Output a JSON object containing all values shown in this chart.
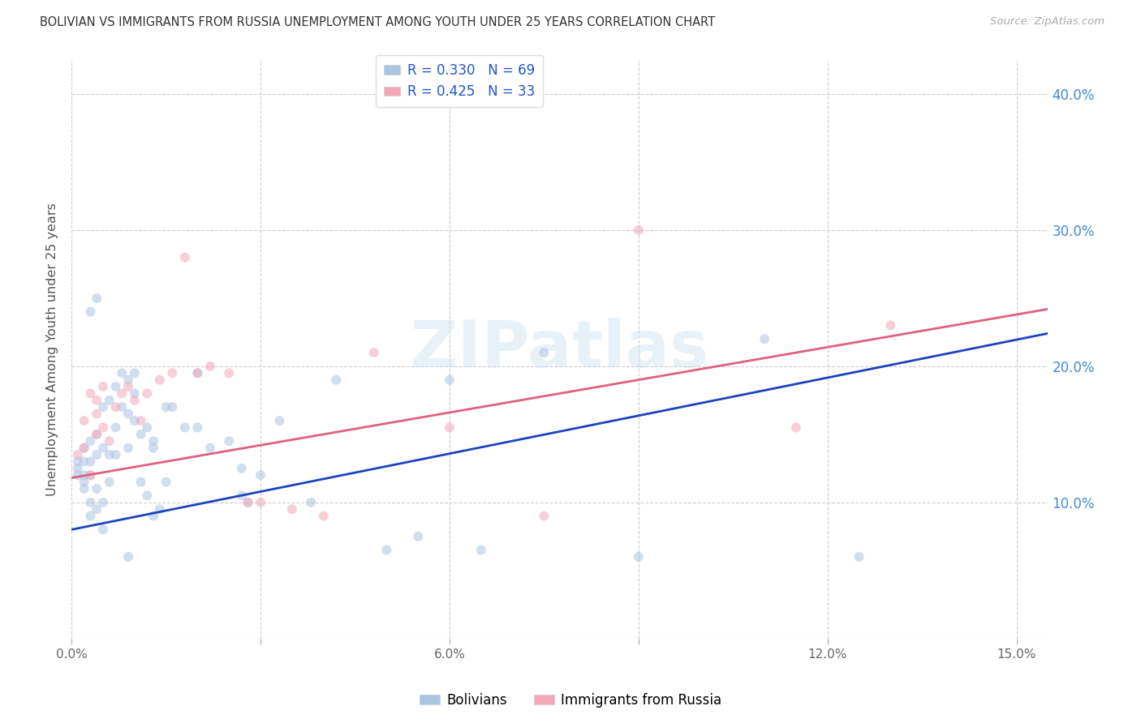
{
  "title": "BOLIVIAN VS IMMIGRANTS FROM RUSSIA UNEMPLOYMENT AMONG YOUTH UNDER 25 YEARS CORRELATION CHART",
  "source": "Source: ZipAtlas.com",
  "ylabel": "Unemployment Among Youth under 25 years",
  "xlim": [
    0.0,
    0.155
  ],
  "ylim": [
    0.0,
    0.425
  ],
  "xtick_vals": [
    0.0,
    0.03,
    0.06,
    0.09,
    0.12,
    0.15
  ],
  "xtick_labels": [
    "0.0%",
    "",
    "6.0%",
    "",
    "12.0%",
    "15.0%"
  ],
  "ytick_vals": [
    0.0,
    0.1,
    0.2,
    0.3,
    0.4
  ],
  "ytick_right_labels": [
    "",
    "10.0%",
    "20.0%",
    "30.0%",
    "40.0%"
  ],
  "bolivians_x": [
    0.001,
    0.001,
    0.001,
    0.002,
    0.002,
    0.002,
    0.002,
    0.002,
    0.003,
    0.003,
    0.003,
    0.003,
    0.003,
    0.004,
    0.004,
    0.004,
    0.004,
    0.005,
    0.005,
    0.005,
    0.005,
    0.006,
    0.006,
    0.006,
    0.007,
    0.007,
    0.007,
    0.008,
    0.008,
    0.009,
    0.009,
    0.009,
    0.01,
    0.01,
    0.01,
    0.011,
    0.011,
    0.012,
    0.012,
    0.013,
    0.013,
    0.014,
    0.015,
    0.015,
    0.016,
    0.018,
    0.02,
    0.022,
    0.025,
    0.027,
    0.027,
    0.03,
    0.033,
    0.038,
    0.042,
    0.05,
    0.055,
    0.06,
    0.065,
    0.075,
    0.09,
    0.11,
    0.125,
    0.003,
    0.004,
    0.009,
    0.013,
    0.02,
    0.028
  ],
  "bolivians_y": [
    0.12,
    0.125,
    0.13,
    0.11,
    0.115,
    0.12,
    0.13,
    0.14,
    0.09,
    0.1,
    0.12,
    0.13,
    0.145,
    0.095,
    0.11,
    0.135,
    0.15,
    0.08,
    0.1,
    0.14,
    0.17,
    0.115,
    0.135,
    0.175,
    0.135,
    0.155,
    0.185,
    0.17,
    0.195,
    0.14,
    0.165,
    0.19,
    0.16,
    0.18,
    0.195,
    0.115,
    0.15,
    0.105,
    0.155,
    0.09,
    0.145,
    0.095,
    0.115,
    0.17,
    0.17,
    0.155,
    0.155,
    0.14,
    0.145,
    0.125,
    0.105,
    0.12,
    0.16,
    0.1,
    0.19,
    0.065,
    0.075,
    0.19,
    0.065,
    0.21,
    0.06,
    0.22,
    0.06,
    0.24,
    0.25,
    0.06,
    0.14,
    0.195,
    0.1
  ],
  "russia_x": [
    0.001,
    0.002,
    0.002,
    0.003,
    0.003,
    0.004,
    0.004,
    0.005,
    0.005,
    0.006,
    0.007,
    0.008,
    0.009,
    0.01,
    0.011,
    0.012,
    0.014,
    0.016,
    0.018,
    0.02,
    0.022,
    0.025,
    0.028,
    0.03,
    0.035,
    0.04,
    0.048,
    0.06,
    0.075,
    0.09,
    0.115,
    0.13,
    0.004
  ],
  "russia_y": [
    0.135,
    0.14,
    0.16,
    0.12,
    0.18,
    0.15,
    0.175,
    0.155,
    0.185,
    0.145,
    0.17,
    0.18,
    0.185,
    0.175,
    0.16,
    0.18,
    0.19,
    0.195,
    0.28,
    0.195,
    0.2,
    0.195,
    0.1,
    0.1,
    0.095,
    0.09,
    0.21,
    0.155,
    0.09,
    0.3,
    0.155,
    0.23,
    0.165
  ],
  "bolivian_color": "#aac4e4",
  "russia_color": "#f2a8b8",
  "bolivian_line_color": "#1a44bb",
  "russia_line_color": "#e06080",
  "legend_R_bolivian": "R = 0.330",
  "legend_N_bolivian": "N = 69",
  "legend_R_russia": "R = 0.425",
  "legend_N_russia": "N = 33",
  "watermark": "ZIPatlas",
  "background_color": "#ffffff",
  "grid_color": "#cccccc",
  "title_color": "#333333",
  "right_tick_color": "#4488dd",
  "marker_size": 75,
  "marker_alpha": 0.55,
  "legend_text_color": "#2255cc",
  "line_intercept_blue": 0.08,
  "line_slope_blue": 0.93,
  "line_intercept_pink": 0.118,
  "line_slope_pink": 0.8
}
